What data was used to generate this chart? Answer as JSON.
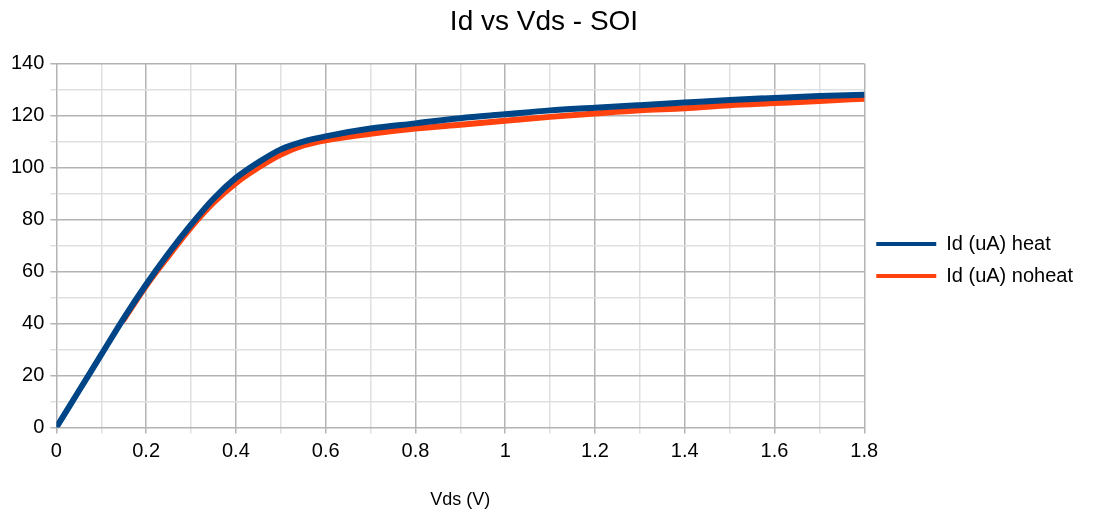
{
  "chart_data": {
    "type": "line",
    "title": "Id vs Vds - SOI",
    "xlabel": "Vds (V)",
    "x": [
      0,
      0.05,
      0.1,
      0.15,
      0.2,
      0.25,
      0.3,
      0.35,
      0.4,
      0.45,
      0.5,
      0.55,
      0.6,
      0.7,
      0.8,
      0.9,
      1.0,
      1.1,
      1.2,
      1.3,
      1.4,
      1.5,
      1.6,
      1.7,
      1.8
    ],
    "series": [
      {
        "name": "Id (uA) heat",
        "color": "#004586",
        "values": [
          0,
          14,
          28,
          42,
          55,
          67,
          78,
          88,
          96,
          102,
          107,
          110,
          112,
          115,
          117,
          119,
          120.5,
          122,
          123,
          124,
          125,
          126,
          126.8,
          127.5,
          128
        ]
      },
      {
        "name": "Id (uA) noheat",
        "color": "#ff420e",
        "values": [
          null,
          null,
          null,
          41.5,
          54.5,
          66,
          77,
          86.5,
          94,
          100,
          105,
          108.5,
          110.5,
          113,
          115,
          116.5,
          118,
          119.5,
          120.8,
          122,
          122.8,
          124,
          124.8,
          125.6,
          126.5
        ]
      }
    ],
    "xlim": [
      0,
      1.8
    ],
    "xticks": [
      0,
      {
        "value": 0.1,
        "label": null
      },
      0.2,
      {
        "value": 0.3,
        "label": null
      },
      0.4,
      {
        "value": 0.5,
        "label": null
      },
      0.6,
      {
        "value": 0.7,
        "label": null
      },
      0.8,
      {
        "value": 0.9,
        "label": null
      },
      1,
      {
        "value": 1.1,
        "label": null
      },
      1.2,
      {
        "value": 1.3,
        "label": null
      },
      1.4,
      {
        "value": 1.5,
        "label": null
      },
      1.6,
      {
        "value": 1.7,
        "label": null
      },
      1.8
    ],
    "ylim": [
      0,
      140
    ],
    "yticks": [
      0,
      {
        "value": 10,
        "label": null
      },
      20,
      {
        "value": 30,
        "label": null
      },
      40,
      {
        "value": 50,
        "label": null
      },
      60,
      {
        "value": 70,
        "label": null
      },
      80,
      {
        "value": 90,
        "label": null
      },
      100,
      {
        "value": 110,
        "label": null
      },
      120,
      {
        "value": 130,
        "label": null
      },
      140
    ],
    "grid": true,
    "legend": "right",
    "marker": "none",
    "line_style": "solid"
  }
}
